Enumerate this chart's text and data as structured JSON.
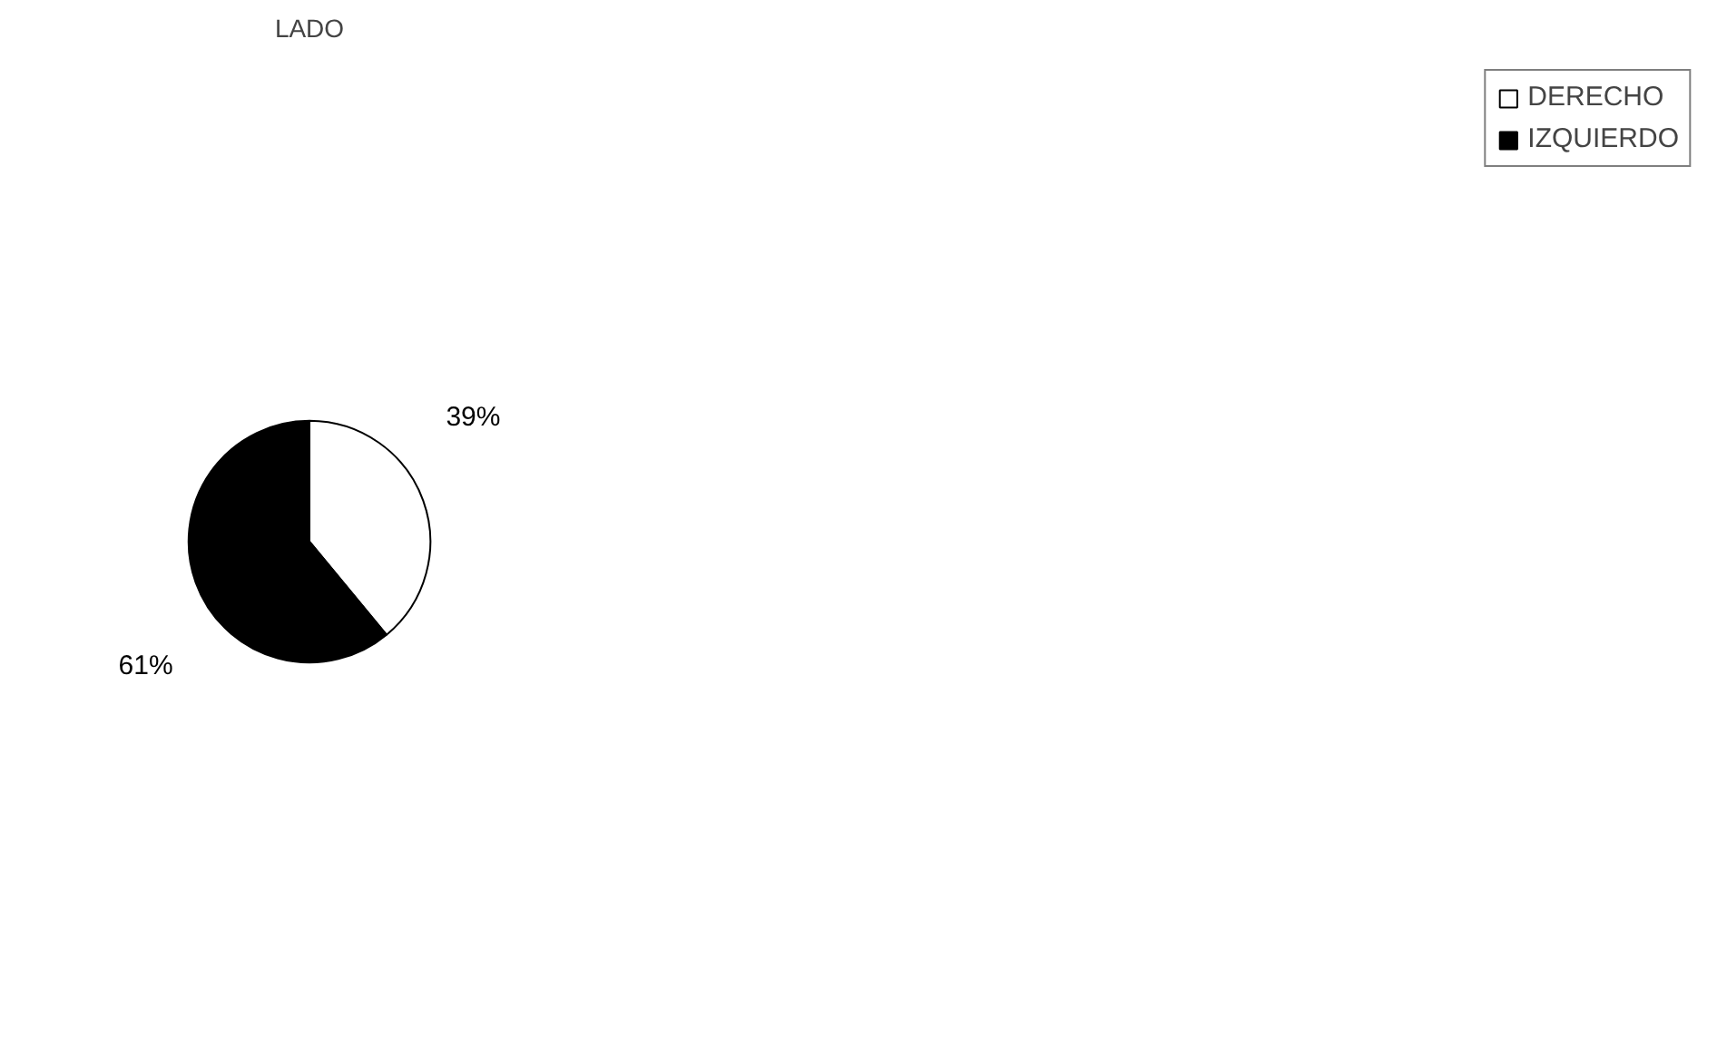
{
  "chart_data": {
    "type": "pie",
    "title": "LADO",
    "categories": [
      "DERECHO",
      "IZQUIERDO"
    ],
    "values": [
      39,
      61
    ],
    "colors": [
      "#ffffff",
      "#000000"
    ],
    "value_labels": [
      "39%",
      "61%"
    ],
    "legend": "right"
  }
}
